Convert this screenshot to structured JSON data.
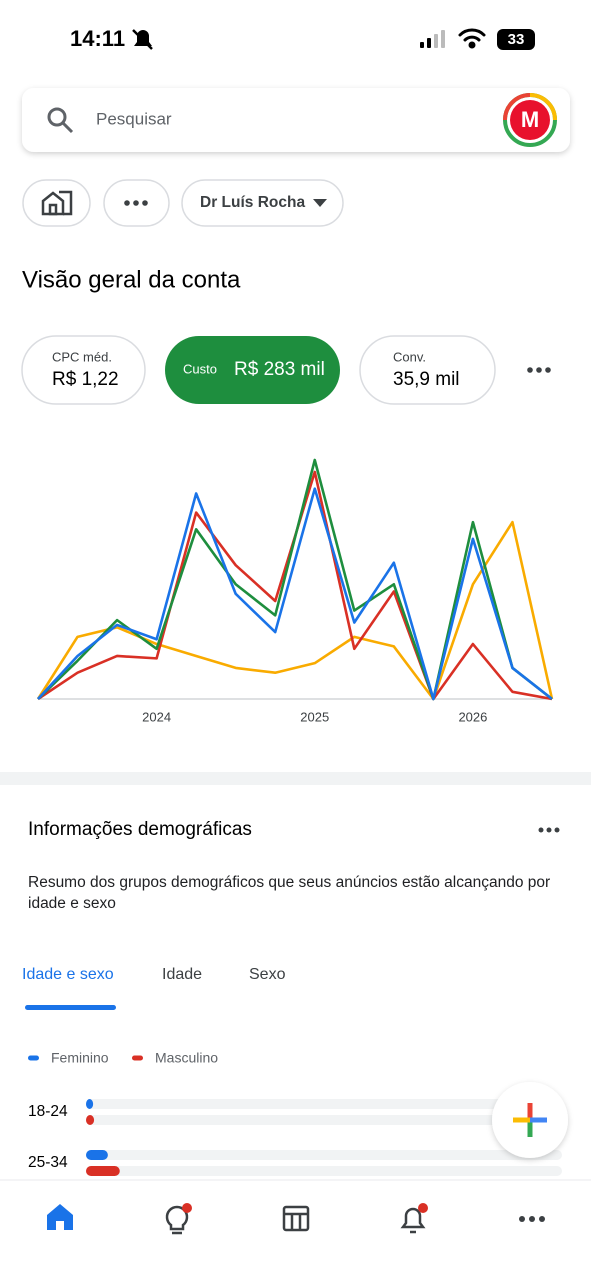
{
  "status_bar": {
    "time": "14:11",
    "battery": "33"
  },
  "search": {
    "placeholder": "Pesquisar",
    "avatar": "M"
  },
  "filters": {
    "account": "Dr Luís Rocha"
  },
  "overview": {
    "title": "Visão geral da conta",
    "metrics": [
      {
        "label": "CPC méd.",
        "value": "R$ 1,22"
      },
      {
        "label": "Custo",
        "value": "R$ 283 mil",
        "selected": true
      },
      {
        "label": "Conv.",
        "value": "35,9 mil"
      }
    ]
  },
  "chart_data": {
    "type": "line",
    "categories": [
      null,
      null,
      null,
      "2024",
      null,
      null,
      null,
      "2025",
      null,
      null,
      null,
      "2026",
      null,
      null
    ],
    "series": [
      {
        "color": "#f9ab00",
        "values": [
          0,
          26,
          30,
          23,
          18,
          13,
          11,
          15,
          26,
          22,
          0,
          48,
          74,
          0
        ]
      },
      {
        "color": "#d93025",
        "values": [
          0,
          11,
          18,
          17,
          78,
          56,
          41,
          95,
          21,
          45,
          0,
          23,
          3,
          0
        ]
      },
      {
        "color": "#1e8e3e",
        "values": [
          0,
          16,
          33,
          21,
          71,
          48,
          35,
          100,
          37,
          48,
          0,
          74,
          13,
          0
        ]
      },
      {
        "color": "#1a73e8",
        "values": [
          0,
          18,
          31,
          25,
          86,
          44,
          28,
          88,
          32,
          57,
          0,
          67,
          13,
          0
        ]
      }
    ]
  },
  "demographics": {
    "title": "Informações demográficas",
    "description": "Resumo dos grupos demográficos que seus anúncios estão alcançando por idade e sexo",
    "tabs": [
      "Idade e sexo",
      "Idade",
      "Sexo"
    ],
    "legend": [
      {
        "name": "Feminino",
        "color": "#1a73e8"
      },
      {
        "name": "Masculino",
        "color": "#d93025"
      }
    ],
    "rows": [
      {
        "label": "18-24",
        "values": [
          1.5,
          1.7
        ]
      },
      {
        "label": "25-34",
        "values": [
          4.6,
          7.1
        ]
      }
    ]
  }
}
